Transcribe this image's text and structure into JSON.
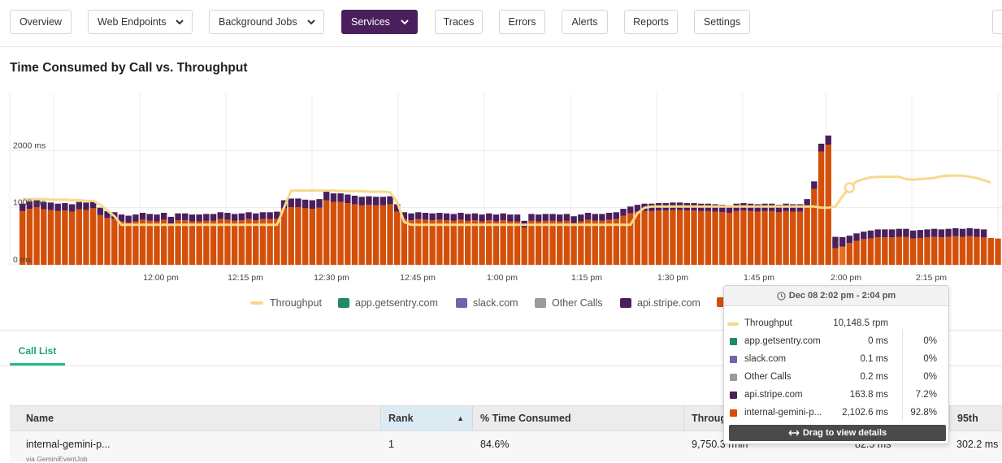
{
  "nav": {
    "items": [
      {
        "label": "Overview"
      },
      {
        "label": "Web Endpoints"
      },
      {
        "label": "Background Jobs"
      },
      {
        "label": "Services"
      },
      {
        "label": "Traces"
      },
      {
        "label": "Errors"
      },
      {
        "label": "Alerts"
      },
      {
        "label": "Reports"
      },
      {
        "label": "Settings"
      }
    ],
    "active": "Services"
  },
  "chart_data": {
    "type": "bar",
    "title": "Time Consumed by Call vs. Throughput",
    "y_ticks": [
      "2000 ms",
      "1000 ms",
      "0 ms"
    ],
    "x_ticks": [
      "12:00 pm",
      "12:15 pm",
      "12:30 pm",
      "12:45 pm",
      "1:00 pm",
      "1:15 pm",
      "1:30 pm",
      "1:45 pm",
      "2:00 pm",
      "2:15 pm"
    ],
    "ylim": [
      0,
      3000
    ],
    "grid": true,
    "series": [
      {
        "name": "Throughput",
        "kind": "line",
        "color": "#f8d98b",
        "values": [
          1150,
          1150,
          1150,
          1150,
          1140,
          1140,
          1140,
          1130,
          1130,
          1120,
          1120,
          1050,
          950,
          850,
          700,
          700,
          700,
          700,
          700,
          700,
          700,
          700,
          700,
          700,
          700,
          700,
          700,
          700,
          700,
          700,
          700,
          700,
          700,
          700,
          700,
          700,
          700,
          1000,
          1300,
          1300,
          1300,
          1300,
          1300,
          1300,
          1300,
          1290,
          1290,
          1290,
          1290,
          1280,
          1280,
          1280,
          1270,
          1100,
          750,
          700,
          700,
          700,
          700,
          700,
          700,
          700,
          700,
          700,
          700,
          700,
          700,
          700,
          700,
          700,
          700,
          700,
          700,
          700,
          700,
          700,
          700,
          700,
          700,
          700,
          700,
          700,
          700,
          700,
          700,
          700,
          700,
          900,
          1000,
          1020,
          1020,
          1020,
          1020,
          1020,
          1020,
          1020,
          1020,
          1020,
          1020,
          1020,
          1020,
          1020,
          1020,
          1020,
          1020,
          1020,
          1020,
          1020,
          1020,
          1020,
          1020,
          1020,
          1020,
          1000,
          1000,
          1020,
          1200,
          1350,
          1460,
          1500,
          1530,
          1540,
          1540,
          1540,
          1540,
          1500,
          1490,
          1500,
          1510,
          1520,
          1550,
          1560,
          1560,
          1560,
          1540,
          1520,
          1480,
          1440
        ]
      },
      {
        "name": "app.getsentry.com",
        "color": "#1f8a64",
        "values": [
          0,
          0,
          0,
          0,
          0,
          0,
          0,
          0,
          0,
          0,
          0,
          0,
          0,
          0,
          0,
          0,
          0,
          0,
          0,
          0,
          0,
          0,
          0,
          0,
          0,
          0,
          0,
          0,
          0,
          0,
          0,
          0,
          0,
          0,
          0,
          0,
          0,
          0,
          0,
          0,
          0,
          0,
          0,
          0,
          0,
          0,
          0,
          0,
          0,
          0,
          0,
          0,
          0,
          0,
          0,
          0,
          0,
          0,
          0,
          0,
          0,
          0,
          0,
          0,
          0,
          0,
          0,
          0,
          0,
          0,
          0,
          0,
          0,
          0,
          0,
          0,
          0,
          0,
          0,
          0,
          0,
          0,
          0,
          0,
          0,
          0,
          0,
          0,
          0,
          0,
          0,
          0,
          0,
          0,
          0,
          0,
          0,
          0,
          0,
          0,
          0,
          0,
          0,
          0,
          0,
          0,
          0,
          0,
          0,
          0,
          0,
          0,
          0,
          0,
          0,
          0,
          0,
          0,
          0,
          0,
          0,
          0,
          0,
          0,
          0,
          0,
          0,
          0,
          0,
          0,
          0,
          0,
          0,
          0,
          0,
          0,
          0,
          0,
          0
        ]
      },
      {
        "name": "slack.com",
        "color": "#6e66aa",
        "values": [
          0,
          0,
          0,
          0,
          0,
          0,
          0,
          0,
          0,
          0,
          0,
          0,
          0,
          0,
          0,
          0,
          0,
          0,
          0,
          0,
          0,
          0,
          0,
          0,
          0,
          0,
          0,
          0,
          0,
          0,
          0,
          0,
          0,
          0,
          0,
          0,
          0,
          0,
          0,
          0,
          0,
          0,
          0,
          0,
          0,
          0,
          0,
          0,
          0,
          0,
          0,
          0,
          0,
          0,
          0,
          0,
          0,
          0,
          0,
          0,
          0,
          0,
          0,
          0,
          0,
          0,
          0,
          0,
          0,
          0,
          0,
          0,
          0,
          0,
          0,
          0,
          0,
          0,
          0,
          0,
          0,
          0,
          0,
          0,
          0,
          0,
          0,
          0,
          0,
          0,
          0,
          0,
          0,
          0,
          0,
          0,
          0,
          0,
          0,
          0,
          0,
          0,
          0,
          0,
          0,
          0,
          0,
          0,
          0,
          0,
          0,
          0,
          0,
          0,
          0,
          0,
          0,
          0,
          0,
          0,
          0,
          0,
          0,
          0,
          0,
          0,
          0,
          0,
          0,
          0,
          0,
          0,
          0,
          0,
          0,
          0,
          0,
          0,
          0
        ]
      },
      {
        "name": "Other Calls",
        "color": "#9b9b9b",
        "values": [
          0,
          0,
          0,
          0,
          0,
          0,
          0,
          0,
          0,
          0,
          0,
          0,
          0,
          0,
          0,
          0,
          0,
          0,
          0,
          0,
          0,
          0,
          0,
          0,
          0,
          0,
          0,
          0,
          0,
          0,
          0,
          0,
          0,
          0,
          0,
          0,
          0,
          0,
          0,
          0,
          0,
          0,
          0,
          0,
          0,
          0,
          0,
          0,
          0,
          0,
          0,
          0,
          0,
          0,
          0,
          0,
          0,
          0,
          0,
          0,
          0,
          0,
          0,
          0,
          0,
          0,
          0,
          0,
          0,
          0,
          0,
          0,
          0,
          0,
          0,
          0,
          0,
          0,
          0,
          0,
          0,
          0,
          0,
          0,
          0,
          0,
          0,
          0,
          0,
          0,
          0,
          0,
          0,
          0,
          0,
          0,
          0,
          0,
          0,
          0,
          0,
          0,
          0,
          0,
          0,
          0,
          0,
          0,
          0,
          0,
          0,
          0,
          0,
          0,
          0,
          0,
          0,
          0,
          0,
          0,
          0,
          0,
          0,
          0,
          0,
          0,
          0,
          0,
          0,
          0,
          0,
          0,
          0,
          0,
          0,
          0,
          0,
          0,
          0
        ]
      },
      {
        "name": "api.stripe.com",
        "color": "#4b1f5c",
        "values": [
          130,
          130,
          130,
          130,
          130,
          130,
          130,
          130,
          130,
          130,
          130,
          130,
          120,
          120,
          120,
          120,
          120,
          120,
          120,
          120,
          120,
          120,
          120,
          120,
          120,
          120,
          120,
          120,
          120,
          120,
          120,
          120,
          120,
          120,
          120,
          120,
          120,
          140,
          150,
          150,
          150,
          150,
          150,
          150,
          150,
          150,
          150,
          150,
          150,
          150,
          150,
          150,
          140,
          130,
          120,
          120,
          120,
          120,
          120,
          120,
          120,
          120,
          120,
          120,
          120,
          120,
          120,
          120,
          120,
          120,
          120,
          120,
          120,
          120,
          120,
          120,
          120,
          120,
          120,
          120,
          120,
          120,
          120,
          120,
          120,
          120,
          120,
          120,
          130,
          130,
          130,
          130,
          130,
          130,
          130,
          130,
          130,
          130,
          130,
          130,
          130,
          130,
          130,
          130,
          130,
          130,
          130,
          130,
          130,
          130,
          130,
          130,
          130,
          140,
          160,
          200,
          164,
          130,
          130,
          130,
          140,
          140,
          140,
          140,
          140,
          140,
          140,
          140,
          140,
          140,
          140,
          140,
          140,
          140,
          140,
          140,
          140
        ]
      },
      {
        "name": "internal-gemini-p...",
        "color": "#d4500a",
        "values": [
          940,
          980,
          1010,
          970,
          960,
          940,
          950,
          930,
          970,
          960,
          990,
          870,
          820,
          800,
          760,
          740,
          760,
          790,
          770,
          760,
          790,
          720,
          780,
          780,
          760,
          760,
          770,
          770,
          800,
          790,
          770,
          780,
          800,
          780,
          800,
          800,
          810,
          990,
          1010,
          1010,
          990,
          980,
          1000,
          1130,
          1100,
          1100,
          1080,
          1060,
          1040,
          1050,
          1040,
          1040,
          1060,
          930,
          800,
          780,
          800,
          790,
          780,
          790,
          780,
          770,
          790,
          770,
          780,
          760,
          780,
          760,
          780,
          760,
          760,
          650,
          770,
          760,
          770,
          770,
          760,
          770,
          730,
          760,
          790,
          770,
          770,
          790,
          800,
          860,
          900,
          930,
          940,
          940,
          950,
          950,
          960,
          960,
          950,
          950,
          940,
          940,
          930,
          920,
          910,
          940,
          950,
          940,
          930,
          940,
          940,
          920,
          940,
          930,
          930,
          1020,
          1330,
          1980,
          2103,
          290,
          320,
          380,
          420,
          450,
          460,
          480,
          480,
          480,
          490,
          490,
          460,
          470,
          480,
          490,
          480,
          490,
          500,
          490,
          500,
          490,
          480,
          470,
          460
        ]
      }
    ],
    "highlight_index": 116
  },
  "legend": [
    {
      "name": "Throughput",
      "kind": "line",
      "color": "#f8d98b"
    },
    {
      "name": "app.getsentry.com",
      "color": "#1f8a64"
    },
    {
      "name": "slack.com",
      "color": "#6e66aa"
    },
    {
      "name": "Other Calls",
      "color": "#9b9b9b"
    },
    {
      "name": "api.stripe.com",
      "color": "#4b1f5c"
    },
    {
      "name": "",
      "color": "#d4500a"
    }
  ],
  "tooltip": {
    "header": "Dec 08 2:02 pm - 2:04 pm",
    "rows": [
      {
        "name": "Throughput",
        "value": "10,148.5 rpm",
        "pct": "",
        "color": "#f8d98b",
        "kind": "line"
      },
      {
        "name": "app.getsentry.com",
        "value": "0 ms",
        "pct": "0%",
        "color": "#1f8a64"
      },
      {
        "name": "slack.com",
        "value": "0.1 ms",
        "pct": "0%",
        "color": "#6e66aa"
      },
      {
        "name": "Other Calls",
        "value": "0.2 ms",
        "pct": "0%",
        "color": "#9b9b9b"
      },
      {
        "name": "api.stripe.com",
        "value": "163.8 ms",
        "pct": "7.2%",
        "color": "#4b1f5c"
      },
      {
        "name": "internal-gemini-p...",
        "value": "2,102.6 ms",
        "pct": "92.8%",
        "color": "#d4500a"
      }
    ],
    "footer": "Drag to view details"
  },
  "tabs": {
    "call_list": "Call List"
  },
  "table": {
    "headers": {
      "name": "Name",
      "rank": "Rank",
      "time": "% Time Consumed",
      "throughput": "Throug",
      "p95": "95th"
    },
    "rows": [
      {
        "name": "internal-gemini-p...",
        "sub": "via GeminiEventJob",
        "rank": "1",
        "time": "84.6%",
        "throughput": "9,750.3 rmin",
        "mean": "82.5 ms",
        "p95": "302.2 ms"
      }
    ]
  }
}
